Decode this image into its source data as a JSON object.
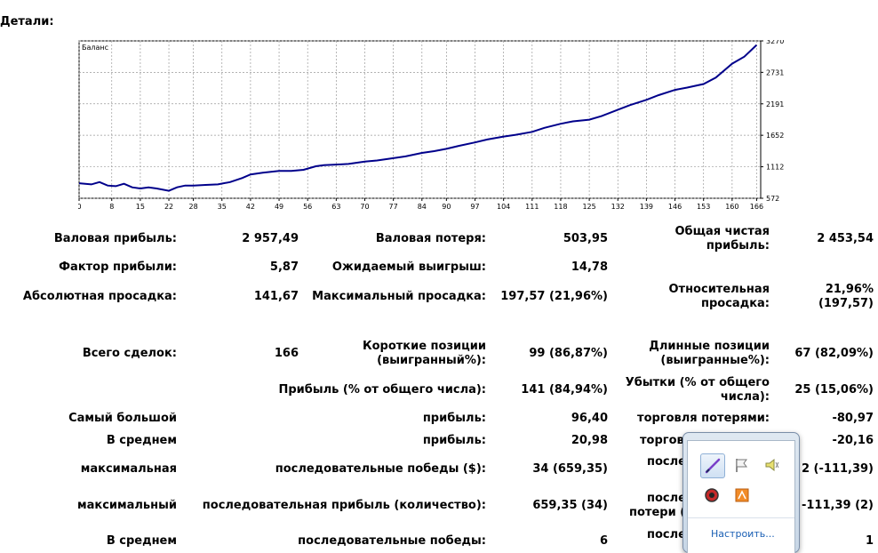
{
  "heading": "Детали:",
  "chart_data": {
    "type": "line",
    "title": "Баланс",
    "x_ticks": [
      "0",
      "8",
      "15",
      "22",
      "28",
      "35",
      "42",
      "49",
      "56",
      "63",
      "70",
      "77",
      "84",
      "90",
      "97",
      "104",
      "111",
      "118",
      "125",
      "132",
      "139",
      "146",
      "153",
      "160",
      "166"
    ],
    "y_ticks": [
      "3270",
      "2731",
      "2191",
      "1652",
      "1112",
      "572"
    ],
    "xlim": [
      0,
      167
    ],
    "ylim": [
      572,
      3270
    ],
    "grid": true,
    "series": [
      {
        "color": "#00008b",
        "x": [
          0,
          3,
          5,
          7,
          9,
          11,
          13,
          15,
          17,
          19,
          22,
          24,
          26,
          28,
          31,
          34,
          37,
          40,
          42,
          45,
          49,
          52,
          55,
          58,
          60,
          63,
          66,
          70,
          73,
          77,
          80,
          84,
          87,
          90,
          93,
          97,
          100,
          104,
          107,
          111,
          114,
          118,
          121,
          125,
          128,
          132,
          135,
          139,
          142,
          146,
          149,
          153,
          156,
          160,
          163,
          166
        ],
        "values": [
          830,
          810,
          850,
          790,
          780,
          820,
          760,
          740,
          760,
          740,
          700,
          760,
          790,
          790,
          800,
          810,
          850,
          920,
          980,
          1010,
          1040,
          1040,
          1060,
          1120,
          1140,
          1150,
          1160,
          1200,
          1220,
          1260,
          1290,
          1350,
          1380,
          1420,
          1470,
          1530,
          1580,
          1630,
          1660,
          1710,
          1780,
          1850,
          1890,
          1920,
          1980,
          2090,
          2170,
          2260,
          2340,
          2430,
          2470,
          2530,
          2640,
          2880,
          3000,
          3200
        ]
      }
    ]
  },
  "rows": [
    {
      "c1": "Валовая прибыль:",
      "v1": "2 957,49",
      "c2": "Валовая потеря:",
      "v2": "503,95",
      "c3": "Общая чистая прибыль:",
      "v3": "2 453,54"
    },
    {
      "c1": "Фактор прибыли:",
      "v1": "5,87",
      "c2": "Ожидаемый выигрыш:",
      "v2": "14,78"
    },
    {
      "c1": "Абсолютная просадка:",
      "v1": "141,67",
      "c2": "Максимальный просадка:",
      "v2": "197,57 (21,96%)",
      "c3": "Относительная просадка:",
      "v3": "21,96% (197,57)"
    },
    {
      "c1": "Всего сделок:",
      "v1": "166",
      "c2": "Короткие позиции (выигранный%):",
      "v2": "99 (86,87%)",
      "c3": "Длинные позиции (выигранные%):",
      "v3": "67 (82,09%)"
    },
    {
      "c2": "Прибыль (% от общего числа):",
      "v2": "141 (84,94%)",
      "c3": "Убытки (% от общего числа):",
      "v3": "25 (15,06%)"
    },
    {
      "c1": "Самый большой",
      "c2": "прибыль:",
      "v2": "96,40",
      "c3": "торговля потерями:",
      "v3": "-80,97"
    },
    {
      "c1": "В среднем",
      "c2": "прибыль:",
      "v2": "20,98",
      "c3": "торгов",
      "v3": "-20,16"
    },
    {
      "c1": "максимальная",
      "c2": "последовательные победы ($):",
      "v2": "34 (659,35)",
      "c3": "после",
      "v3": "2 (-111,39)"
    },
    {
      "c1": "максимальный",
      "c2": "последовательная прибыль (количество):",
      "v2": "659,35 (34)",
      "c3a": "после",
      "c3b": "потери (",
      "v3": "-111,39 (2)"
    },
    {
      "c1": "В среднем",
      "c2": "последовательные победы:",
      "v2": "6",
      "c3": "после",
      "v3": "1"
    }
  ],
  "tray": {
    "icons": [
      "pen-icon",
      "flag-icon",
      "speaker-icon",
      "antivirus-icon",
      "app-icon"
    ],
    "link": "Настроить..."
  }
}
